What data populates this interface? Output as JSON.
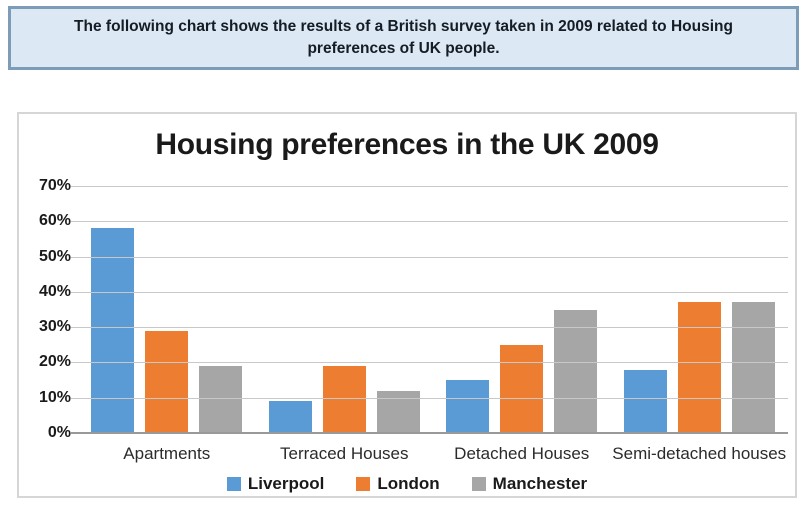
{
  "header": {
    "description": "The following chart shows the results of a British survey taken in 2009 related to Housing preferences of UK people."
  },
  "chart_data": {
    "type": "bar",
    "title": "Housing preferences in the UK 2009",
    "categories": [
      "Apartments",
      "Terraced Houses",
      "Detached Houses",
      "Semi-detached houses"
    ],
    "series": [
      {
        "name": "Liverpool",
        "color": "#5B9BD5",
        "values": [
          58,
          9,
          15,
          18
        ]
      },
      {
        "name": "London",
        "color": "#ED7D31",
        "values": [
          29,
          19,
          25,
          37
        ]
      },
      {
        "name": "Manchester",
        "color": "#A6A6A6",
        "values": [
          19,
          12,
          35,
          37
        ]
      }
    ],
    "ylim": [
      0,
      70
    ],
    "ytick_step": 10,
    "ytick_labels": [
      "0%",
      "10%",
      "20%",
      "30%",
      "40%",
      "50%",
      "60%",
      "70%"
    ],
    "grid": true,
    "legend_position": "bottom"
  },
  "colors": {
    "header_bg": "#DCE8F4",
    "header_border": "#7D9CB8",
    "chart_border": "#D6D6D6",
    "gridline": "#C8C8C8",
    "axis_line": "#999999"
  }
}
